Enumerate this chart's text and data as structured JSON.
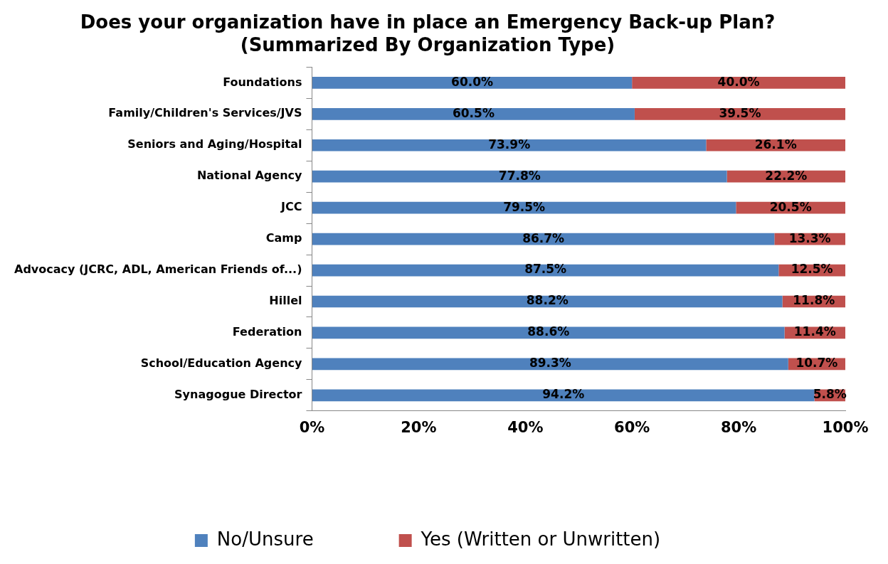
{
  "chart_data": {
    "type": "bar",
    "orientation": "horizontal",
    "stacked": true,
    "title": [
      "Does your organization have in place an Emergency Back-up Plan?",
      "(Summarized By Organization Type)"
    ],
    "categories": [
      "Foundations",
      "Family/Children's Services/JVS",
      "Seniors and Aging/Hospital",
      "National Agency",
      "JCC",
      "Camp",
      "Advocacy (JCRC, ADL, American Friends of...)",
      "Hillel",
      "Federation",
      "School/Education Agency",
      "Synagogue Director"
    ],
    "series": [
      {
        "name": "No/Unsure",
        "color": "#4f81bd",
        "values": [
          60.0,
          60.5,
          73.9,
          77.8,
          79.5,
          86.7,
          87.5,
          88.2,
          88.6,
          89.3,
          94.2
        ],
        "value_labels": [
          "60.0%",
          "60.5%",
          "73.9%",
          "77.8%",
          "79.5%",
          "86.7%",
          "87.5%",
          "88.2%",
          "88.6%",
          "89.3%",
          "94.2%"
        ]
      },
      {
        "name": "Yes (Written or Unwritten)",
        "color": "#c0504d",
        "values": [
          40.0,
          39.5,
          26.1,
          22.2,
          20.5,
          13.3,
          12.5,
          11.8,
          11.4,
          10.7,
          5.8
        ],
        "value_labels": [
          "40.0%",
          "39.5%",
          "26.1%",
          "22.2%",
          "20.5%",
          "13.3%",
          "12.5%",
          "11.8%",
          "11.4%",
          "10.7%",
          "5.8%"
        ]
      }
    ],
    "xlim": [
      0,
      100
    ],
    "xticks": [
      {
        "value": 0,
        "label": "0%"
      },
      {
        "value": 20,
        "label": "20%"
      },
      {
        "value": 40,
        "label": "40%"
      },
      {
        "value": 60,
        "label": "60%"
      },
      {
        "value": 80,
        "label": "80%"
      },
      {
        "value": 100,
        "label": "100%"
      }
    ],
    "grid": false,
    "legend": "bottom"
  }
}
